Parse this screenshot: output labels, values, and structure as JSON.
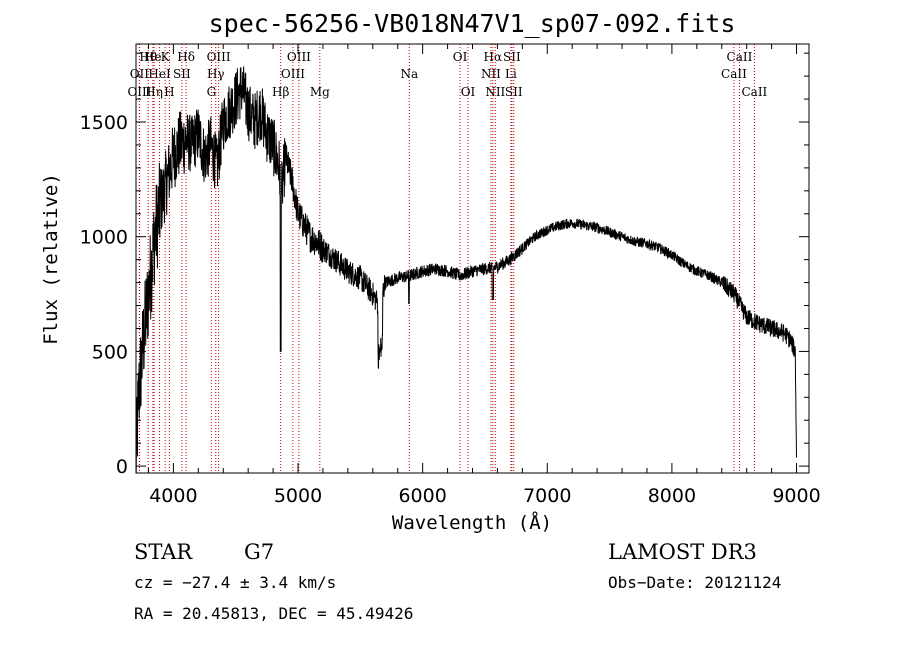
{
  "chart_data": {
    "type": "line",
    "title": "spec-56256-VB018N47V1_sp07-092.fits",
    "xlabel": "Wavelength (Å)",
    "ylabel": "Flux (relative)",
    "xlim": [
      3700,
      9100
    ],
    "ylim": [
      -30,
      1840
    ],
    "xticks": [
      4000,
      5000,
      6000,
      7000,
      8000,
      9000
    ],
    "yticks": [
      0,
      500,
      1000,
      1500
    ],
    "spectrum_anchors": {
      "x": [
        3700,
        3720,
        3760,
        3800,
        3850,
        3900,
        3950,
        4000,
        4050,
        4100,
        4150,
        4200,
        4250,
        4300,
        4350,
        4400,
        4450,
        4500,
        4550,
        4600,
        4650,
        4700,
        4750,
        4800,
        4850,
        4870,
        4900,
        4950,
        5000,
        5050,
        5100,
        5150,
        5200,
        5300,
        5400,
        5500,
        5600,
        5650,
        5700,
        5800,
        5900,
        6000,
        6100,
        6200,
        6300,
        6400,
        6500,
        6600,
        6700,
        6800,
        6900,
        7000,
        7100,
        7200,
        7300,
        7400,
        7500,
        7600,
        7700,
        7800,
        7900,
        8000,
        8100,
        8200,
        8300,
        8400,
        8500,
        8600,
        8700,
        8800,
        8900,
        8950,
        8990,
        9000
      ],
      "y": [
        0,
        300,
        550,
        750,
        1000,
        1150,
        1250,
        1350,
        1400,
        1420,
        1400,
        1450,
        1350,
        1400,
        1300,
        1500,
        1550,
        1600,
        1650,
        1550,
        1500,
        1550,
        1450,
        1400,
        1300,
        1200,
        1350,
        1250,
        1100,
        1050,
        1000,
        980,
        950,
        900,
        850,
        820,
        750,
        700,
        800,
        820,
        830,
        850,
        860,
        850,
        830,
        850,
        860,
        870,
        900,
        950,
        1000,
        1030,
        1050,
        1060,
        1050,
        1040,
        1020,
        1000,
        980,
        970,
        950,
        920,
        880,
        850,
        830,
        800,
        750,
        650,
        620,
        600,
        580,
        550,
        500,
        30
      ]
    },
    "emission_lines": [
      {
        "label": "Hθ",
        "x": 3798,
        "row": 1
      },
      {
        "label": "OII",
        "x": 3727,
        "row": 2
      },
      {
        "label": "OIII",
        "x": 3728,
        "row": 3
      },
      {
        "label": "He",
        "x": 3835,
        "row": 1
      },
      {
        "label": "Hη",
        "x": 3845,
        "row": 3
      },
      {
        "label": "HeI",
        "x": 3889,
        "row": 2
      },
      {
        "label": "K",
        "x": 3934,
        "row": 1
      },
      {
        "label": "H",
        "x": 3968,
        "row": 3
      },
      {
        "label": "SII",
        "x": 4068,
        "row": 2
      },
      {
        "label": "Hδ",
        "x": 4102,
        "row": 1
      },
      {
        "label": "OIII",
        "x": 4363,
        "row": 1
      },
      {
        "label": "Hγ",
        "x": 4340,
        "row": 2
      },
      {
        "label": "G",
        "x": 4305,
        "row": 3
      },
      {
        "label": "Hβ",
        "x": 4861,
        "row": 3
      },
      {
        "label": "OIII",
        "x": 5007,
        "row": 1
      },
      {
        "label": "OIII",
        "x": 4959,
        "row": 2
      },
      {
        "label": "Mg",
        "x": 5175,
        "row": 3
      },
      {
        "label": "Na",
        "x": 5893,
        "row": 2
      },
      {
        "label": "OI",
        "x": 6300,
        "row": 1
      },
      {
        "label": "OI",
        "x": 6364,
        "row": 3
      },
      {
        "label": "Hα",
        "x": 6563,
        "row": 1
      },
      {
        "label": "NII",
        "x": 6548,
        "row": 2
      },
      {
        "label": "NII",
        "x": 6583,
        "row": 3
      },
      {
        "label": "SII",
        "x": 6716,
        "row": 1
      },
      {
        "label": "Li",
        "x": 6708,
        "row": 2
      },
      {
        "label": "SII",
        "x": 6731,
        "row": 3
      },
      {
        "label": "CaII",
        "x": 8542,
        "row": 1
      },
      {
        "label": "CaII",
        "x": 8498,
        "row": 2
      },
      {
        "label": "CaII",
        "x": 8662,
        "row": 3
      }
    ]
  },
  "footer": {
    "object_type": "STAR",
    "subclass": "G7",
    "survey": "LAMOST DR3",
    "redshift": "cz = −27.4 ± 3.4 km/s",
    "obs_date": "Obs−Date: 20121124",
    "coordinates": "RA =  20.45813, DEC =  45.49426"
  },
  "colors": {
    "line_marker": "#cc0000",
    "spectrum": "#000000"
  }
}
